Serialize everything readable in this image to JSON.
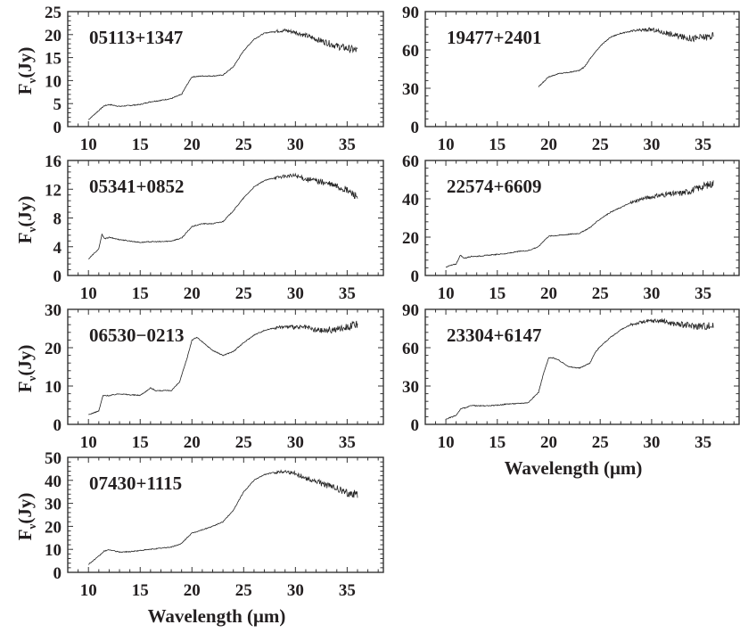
{
  "chart_data": [
    {
      "type": "line",
      "title": "05113+1347",
      "col": 0,
      "row": 0,
      "xlim": [
        8,
        38.5
      ],
      "ylim": [
        0,
        25
      ],
      "xticks": [
        10,
        15,
        20,
        25,
        30,
        35
      ],
      "yticks": [
        0,
        5,
        10,
        15,
        20,
        25
      ],
      "ylabel": {
        "main": "F",
        "sub": "ν",
        "unit": "(Jy)"
      },
      "xlabel": "",
      "x": [
        10,
        11,
        11.5,
        12,
        13,
        14,
        15,
        16,
        17,
        18,
        19,
        19.5,
        20,
        21,
        22,
        23,
        24,
        25,
        26,
        27,
        28,
        29,
        30,
        31,
        32,
        33,
        34,
        35,
        36
      ],
      "y": [
        1.5,
        3.5,
        4.5,
        4.8,
        4.4,
        4.6,
        4.8,
        5.4,
        5.7,
        6.1,
        7,
        9,
        10.8,
        11,
        11,
        11.2,
        13,
        16.5,
        19,
        20.3,
        20.7,
        20.9,
        20.5,
        19.8,
        19,
        18.3,
        17.5,
        17,
        16.5
      ]
    },
    {
      "type": "line",
      "title": "05341+0852",
      "col": 0,
      "row": 1,
      "xlim": [
        8,
        38.5
      ],
      "ylim": [
        0,
        16
      ],
      "xticks": [
        10,
        15,
        20,
        25,
        30,
        35
      ],
      "yticks": [
        0,
        4,
        8,
        12,
        16
      ],
      "ylabel": {
        "main": "F",
        "sub": "ν",
        "unit": "(Jy)"
      },
      "xlabel": "",
      "x": [
        10,
        11,
        11.3,
        11.6,
        12,
        13,
        14,
        15,
        16,
        17,
        18,
        19,
        20,
        21,
        22,
        23,
        24,
        25,
        26,
        27,
        28,
        29,
        30,
        31,
        32,
        33,
        34,
        35,
        36
      ],
      "y": [
        2.3,
        3.7,
        5.7,
        5.1,
        5.3,
        5,
        4.8,
        4.6,
        4.7,
        4.7,
        4.8,
        5.2,
        6.8,
        7.2,
        7.2,
        7.5,
        9,
        10.8,
        12.3,
        13.2,
        13.6,
        13.8,
        13.9,
        13.4,
        13.2,
        12.8,
        12.4,
        11.8,
        11
      ]
    },
    {
      "type": "line",
      "title": "06530−0213",
      "col": 0,
      "row": 2,
      "xlim": [
        8,
        38.5
      ],
      "ylim": [
        0,
        30
      ],
      "xticks": [
        10,
        15,
        20,
        25,
        30,
        35
      ],
      "yticks": [
        0,
        10,
        20,
        30
      ],
      "ylabel": {
        "main": "F",
        "sub": "ν",
        "unit": "(Jy)"
      },
      "xlabel": "",
      "x": [
        10,
        11,
        11.4,
        12,
        13,
        14,
        15,
        15.5,
        16,
        16.5,
        17,
        18,
        18.8,
        19.5,
        20,
        20.5,
        21,
        22,
        23,
        24,
        25,
        26,
        27,
        28,
        29,
        30,
        31,
        32,
        33,
        34,
        35,
        36
      ],
      "y": [
        2.5,
        3.5,
        7.5,
        7.5,
        8,
        7.7,
        7.6,
        8.5,
        9.5,
        8.8,
        8.8,
        8.8,
        11,
        17,
        22,
        22.7,
        21.5,
        19.3,
        18,
        19,
        21.3,
        23.3,
        24.5,
        25.2,
        25.5,
        25.3,
        25.3,
        24.5,
        24.5,
        24.8,
        25.5,
        26
      ]
    },
    {
      "type": "line",
      "title": "07430+1115",
      "col": 0,
      "row": 3,
      "xlim": [
        8,
        38.5
      ],
      "ylim": [
        0,
        50
      ],
      "xticks": [
        10,
        15,
        20,
        25,
        30,
        35
      ],
      "yticks": [
        0,
        10,
        20,
        30,
        40,
        50
      ],
      "ylabel": {
        "main": "F",
        "sub": "ν",
        "unit": "(Jy)"
      },
      "xlabel": "Wavelength (μm)",
      "x": [
        10,
        11,
        11.5,
        12,
        13,
        14,
        15,
        16,
        17,
        18,
        19,
        19.5,
        20,
        21,
        22,
        23,
        24,
        25,
        26,
        27,
        28,
        29,
        30,
        31,
        32,
        33,
        34,
        35,
        36
      ],
      "y": [
        3.5,
        7,
        9.2,
        9.8,
        8.8,
        9,
        9.5,
        10,
        10.5,
        11,
        12.5,
        15,
        17,
        18.5,
        20,
        22,
        27,
        35,
        40,
        42.5,
        43.5,
        44,
        43,
        41,
        39.5,
        38,
        36.5,
        34.5,
        34
      ]
    },
    {
      "type": "line",
      "title": "19477+2401",
      "col": 1,
      "row": 0,
      "xlim": [
        8,
        38.5
      ],
      "ylim": [
        0,
        90
      ],
      "xticks": [
        10,
        15,
        20,
        25,
        30,
        35
      ],
      "yticks": [
        0,
        30,
        60,
        90
      ],
      "xlabel": "",
      "x": [
        19,
        19.5,
        20,
        21,
        22,
        23,
        23.5,
        24,
        25,
        26,
        27,
        28,
        29,
        30,
        31,
        32,
        33,
        34,
        35,
        36
      ],
      "y": [
        31,
        35,
        39,
        41.5,
        42.5,
        44,
        47,
        53,
        63,
        70,
        73,
        74.5,
        75.5,
        76,
        74,
        72,
        70,
        69,
        70,
        71
      ]
    },
    {
      "type": "line",
      "title": "22574+6609",
      "col": 1,
      "row": 1,
      "xlim": [
        8,
        38.5
      ],
      "ylim": [
        0,
        60
      ],
      "xticks": [
        10,
        15,
        20,
        25,
        30,
        35
      ],
      "yticks": [
        0,
        20,
        40,
        60
      ],
      "xlabel": "",
      "x": [
        10,
        11,
        11.4,
        11.8,
        12.5,
        13,
        14,
        15,
        16,
        17,
        18,
        19,
        19.5,
        20,
        21,
        22,
        23,
        24,
        25,
        26,
        27,
        28,
        29,
        30,
        31,
        32,
        33,
        34,
        35,
        36
      ],
      "y": [
        4.5,
        6,
        10.5,
        9,
        10,
        10,
        10.5,
        11,
        11.5,
        12.5,
        13,
        15,
        18,
        20.5,
        21,
        21.5,
        22,
        25,
        29.5,
        33,
        35.5,
        38,
        40,
        41,
        42,
        42.5,
        43,
        44.5,
        46.5,
        48
      ]
    },
    {
      "type": "line",
      "title": "23304+6147",
      "col": 1,
      "row": 2,
      "xlim": [
        8,
        38.5
      ],
      "ylim": [
        0,
        90
      ],
      "xticks": [
        10,
        15,
        20,
        25,
        30,
        35
      ],
      "yticks": [
        0,
        30,
        60,
        90
      ],
      "xlabel": "Wavelength (μm)",
      "x": [
        10,
        11,
        11.5,
        12,
        12.5,
        13,
        14,
        15,
        16,
        17,
        18,
        19,
        19.5,
        20,
        20.5,
        21,
        22,
        23,
        24,
        24.5,
        25,
        26,
        27,
        28,
        29,
        30,
        31,
        32,
        33,
        34,
        35,
        36
      ],
      "y": [
        4,
        7,
        12.5,
        13,
        15,
        14.5,
        14.5,
        15,
        16,
        16.3,
        17,
        25,
        40,
        52,
        52,
        50,
        45,
        44,
        48,
        56,
        61,
        68,
        74,
        78,
        80,
        81,
        81,
        79,
        78,
        77,
        77,
        77
      ]
    }
  ]
}
